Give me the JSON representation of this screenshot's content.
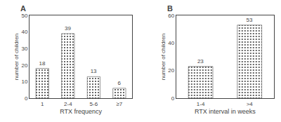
{
  "chart_data": [
    {
      "type": "bar",
      "title": "A",
      "categories": [
        "1",
        "2-4",
        "5-6",
        "≥7"
      ],
      "values": [
        18,
        39,
        13,
        6
      ],
      "color": "#8c8c8c",
      "xlabel": "RTX frequency",
      "ylabel": "number of children",
      "ylim": [
        0,
        50
      ],
      "yticks": [
        0,
        10,
        20,
        30,
        40,
        50
      ],
      "grid": false,
      "data_labels": true
    },
    {
      "type": "bar",
      "title": "B",
      "categories": [
        "1-4",
        ">4"
      ],
      "values": [
        23,
        53
      ],
      "color": "#8c8c8c",
      "xlabel": "RTX interval in weeks",
      "ylabel": "number of children",
      "ylim": [
        0,
        60
      ],
      "yticks": [
        0,
        20,
        40,
        60
      ],
      "grid": false,
      "data_labels": true
    }
  ]
}
